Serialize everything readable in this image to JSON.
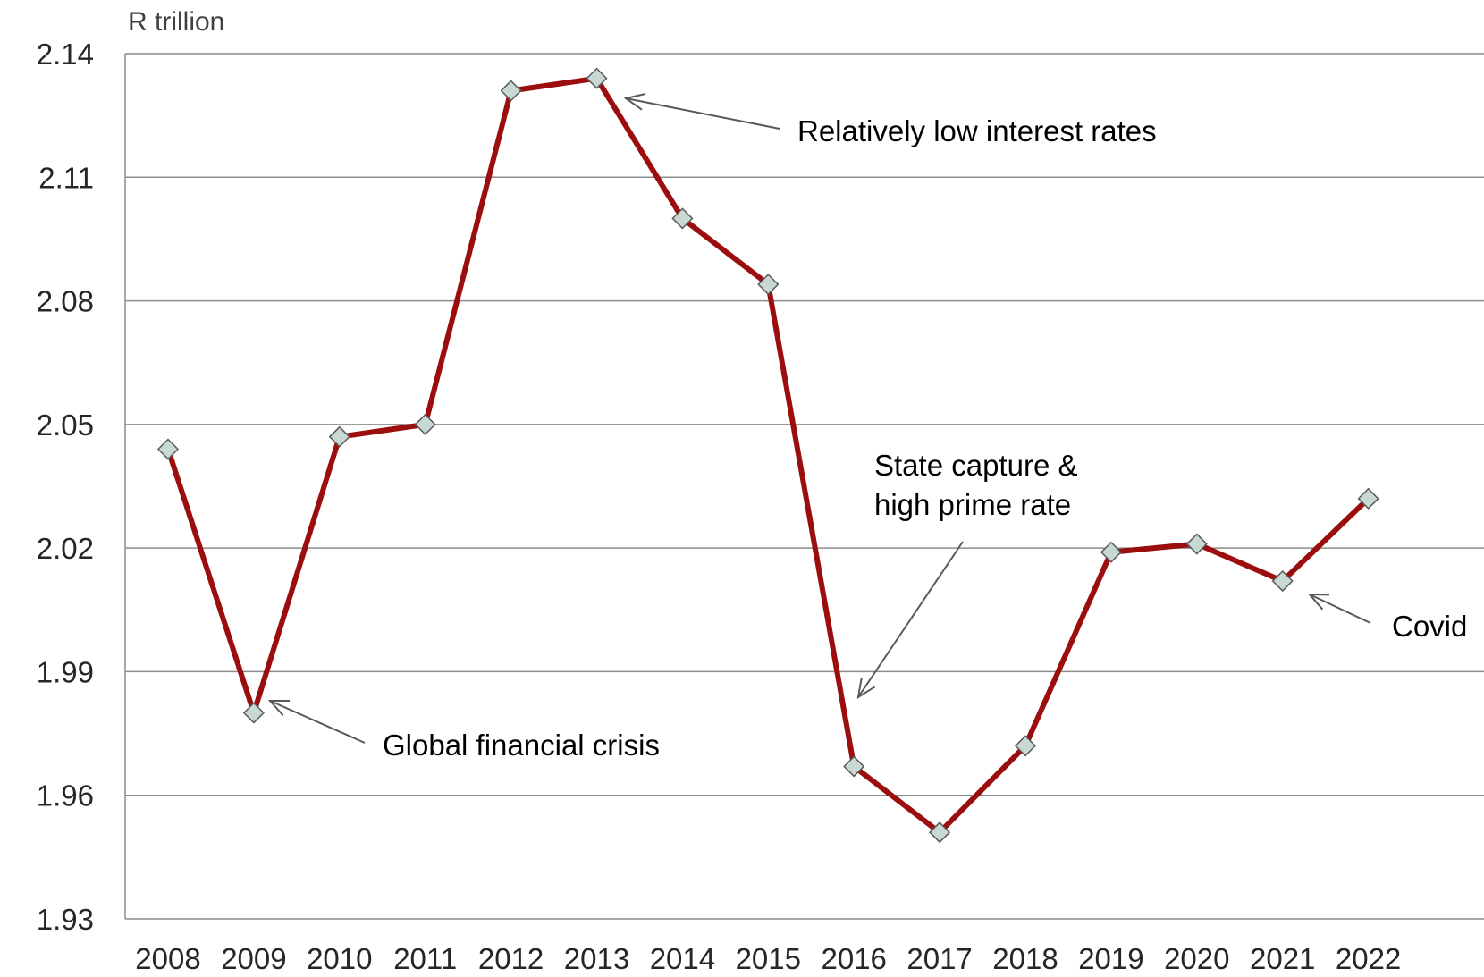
{
  "chart_data": {
    "type": "line",
    "ylabel": "R trillion",
    "ylim": [
      1.93,
      2.14
    ],
    "yticks": [
      "1.93",
      "1.96",
      "1.99",
      "2.02",
      "2.05",
      "2.08",
      "2.11",
      "2.14"
    ],
    "categories": [
      "2008",
      "2009",
      "2010",
      "2011",
      "2012",
      "2013",
      "2014",
      "2015",
      "2016",
      "2017",
      "2018",
      "2019",
      "2020",
      "2021",
      "2022"
    ],
    "series": [
      {
        "values": [
          2.044,
          1.98,
          2.047,
          2.05,
          2.131,
          2.134,
          2.1,
          2.084,
          1.967,
          1.951,
          1.972,
          2.019,
          2.021,
          2.012,
          2.032
        ]
      }
    ],
    "grid": true,
    "legend": "none",
    "annotations": [
      {
        "lines": [
          "Relatively low interest rates"
        ],
        "category": "2013"
      },
      {
        "lines": [
          "Global financial crisis"
        ],
        "category": "2009"
      },
      {
        "lines": [
          "State capture &",
          "high prime rate"
        ],
        "category": "2016"
      },
      {
        "lines": [
          "Covid"
        ],
        "category": "2021"
      }
    ]
  },
  "colors": {
    "line": "#9c0e0e",
    "marker_fill": "#c8d8d2",
    "marker_stroke": "#595959",
    "grid": "#8c8c8c",
    "text": "#262626"
  }
}
